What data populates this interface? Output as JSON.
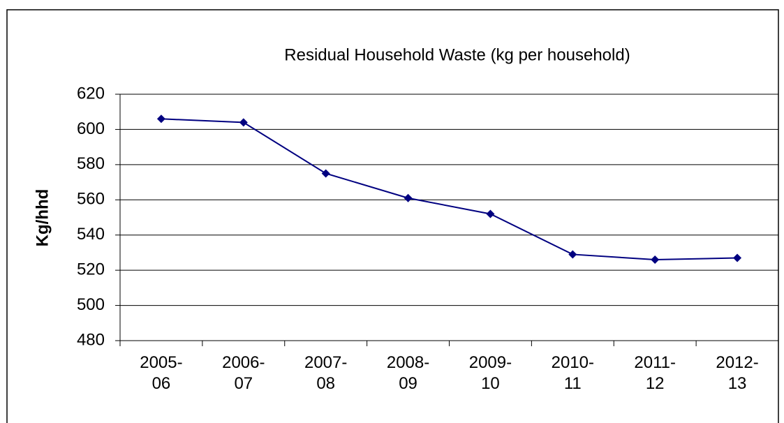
{
  "chart_data": {
    "type": "line",
    "title": "Residual Household Waste (kg per household)",
    "y_label": "Kg/hhd",
    "categories": [
      "2005-06",
      "2006-07",
      "2007-08",
      "2008-09",
      "2009-10",
      "2010-11",
      "2011-12",
      "2012-13"
    ],
    "series": [
      {
        "name": "Residual Household Waste",
        "color": "#000080",
        "values": [
          606,
          604,
          575,
          561,
          552,
          529,
          526,
          527
        ]
      }
    ],
    "ylim": [
      480,
      620
    ],
    "yticks": [
      480,
      500,
      520,
      540,
      560,
      580,
      600,
      620
    ],
    "grid": true
  }
}
